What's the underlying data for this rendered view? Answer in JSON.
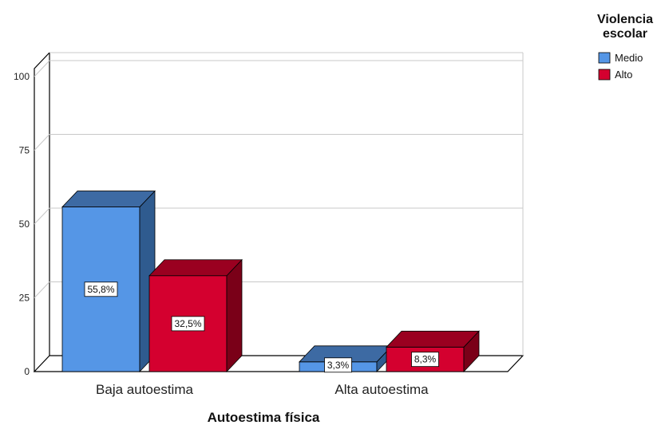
{
  "chart_data": {
    "type": "bar",
    "categories": [
      "Baja autoestima",
      "Alta autoestima"
    ],
    "series": [
      {
        "name": "Medio",
        "values": [
          55.8,
          3.3
        ],
        "labels": [
          "55,8%",
          "3,3%"
        ],
        "color": "#5596e6",
        "side_color": "#2f5b8f",
        "top_color": "#3d6aa3"
      },
      {
        "name": "Alto",
        "values": [
          32.5,
          8.3
        ],
        "labels": [
          "32,5%",
          "8,3%"
        ],
        "color": "#d4002f",
        "side_color": "#7a0018",
        "top_color": "#9a0020"
      }
    ],
    "xlabel": "Autoestima física",
    "ylabel": "",
    "yticks": [
      0,
      25,
      50,
      75,
      100
    ],
    "ylim": [
      0,
      100
    ],
    "legend": {
      "title": "Violencia escolar",
      "position": "top-right"
    },
    "grid": true
  }
}
